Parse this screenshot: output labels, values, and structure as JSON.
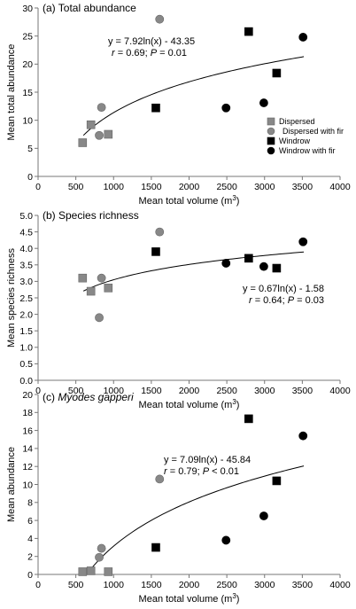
{
  "chart_data": [
    {
      "type": "scatter",
      "panel_label": "(a) Total abundance",
      "title_parts": [
        {
          "text": "(a) Total abundance",
          "italic": false
        }
      ],
      "xlabel": "Mean total volume (m",
      "xlabel_sup": "3",
      "xlabel_close": ")",
      "ylabel": "Mean total abundance",
      "xlim": [
        0,
        4000
      ],
      "xticks": [
        "0",
        "500",
        "1000",
        "1500",
        "2000",
        "2500",
        "3000",
        "3500",
        "4000"
      ],
      "ylim": [
        0,
        30
      ],
      "yticks": [
        "0",
        "5",
        "10",
        "15",
        "20",
        "25",
        "30"
      ],
      "grid": false,
      "equation": "y = 7.92ln(x) - 43.35",
      "stat_r": "r",
      "stat_mid": " = 0.69; ",
      "stat_p": "P",
      "stat_end": " = 0.01",
      "trend": {
        "a": 7.92,
        "b": -43.35,
        "x_from": 600,
        "x_to": 3520
      },
      "legend": {
        "position": "right-middle",
        "entries": [
          {
            "label": "Dispersed",
            "marker": "square",
            "color": "#888888"
          },
          {
            "label": "Dispersed with fir",
            "marker": "circle",
            "color": "#888888"
          },
          {
            "label": "Windrow",
            "marker": "square",
            "color": "#000000"
          },
          {
            "label": "Windrow with fir",
            "marker": "circle",
            "color": "#000000"
          }
        ]
      },
      "series": [
        {
          "name": "Dispersed",
          "marker": "square",
          "color": "#888888",
          "x": [
            590,
            700,
            930
          ],
          "y": [
            6,
            9.2,
            7.5
          ]
        },
        {
          "name": "Dispersed with fir",
          "marker": "circle",
          "color": "#888888",
          "x": [
            810,
            840,
            1610
          ],
          "y": [
            7.3,
            12.3,
            28
          ]
        },
        {
          "name": "Windrow",
          "marker": "square",
          "color": "#000000",
          "x": [
            1560,
            2790,
            3160
          ],
          "y": [
            12.2,
            25.8,
            18.4
          ]
        },
        {
          "name": "Windrow with fir",
          "marker": "circle",
          "color": "#000000",
          "x": [
            2490,
            2990,
            3510
          ],
          "y": [
            12.2,
            13.1,
            24.8
          ]
        }
      ]
    },
    {
      "type": "scatter",
      "panel_label": "(b) Species richness",
      "title_parts": [
        {
          "text": "(b) Species richness",
          "italic": false
        }
      ],
      "xlabel": "Mean total volume (m",
      "xlabel_sup": "3",
      "xlabel_close": ")",
      "ylabel": "Mean species richness",
      "xlim": [
        0,
        4000
      ],
      "xticks": [
        "0",
        "500",
        "1000",
        "1500",
        "2000",
        "2500",
        "3000",
        "3500",
        "4000"
      ],
      "ylim": [
        0,
        5
      ],
      "yticks": [
        "0.0",
        "0.5",
        "1.0",
        "1.5",
        "2.0",
        "2.5",
        "3.0",
        "3.5",
        "4.0",
        "4.5",
        "5.0"
      ],
      "grid": false,
      "equation": "y = 0.67ln(x) - 1.58",
      "stat_r": "r",
      "stat_mid": " = 0.64; ",
      "stat_p": "P",
      "stat_end": " = 0.03",
      "trend": {
        "a": 0.67,
        "b": -1.58,
        "x_from": 600,
        "x_to": 3520
      },
      "series": [
        {
          "name": "Dispersed",
          "marker": "square",
          "color": "#888888",
          "x": [
            590,
            700,
            930
          ],
          "y": [
            3.1,
            2.7,
            2.8
          ]
        },
        {
          "name": "Dispersed with fir",
          "marker": "circle",
          "color": "#888888",
          "x": [
            810,
            840,
            1610
          ],
          "y": [
            1.9,
            3.1,
            4.5
          ]
        },
        {
          "name": "Windrow",
          "marker": "square",
          "color": "#000000",
          "x": [
            1560,
            2790,
            3160
          ],
          "y": [
            3.9,
            3.7,
            3.4
          ]
        },
        {
          "name": "Windrow with fir",
          "marker": "circle",
          "color": "#000000",
          "x": [
            2490,
            2990,
            3510
          ],
          "y": [
            3.55,
            3.45,
            4.2
          ]
        }
      ]
    },
    {
      "type": "scatter",
      "panel_label": "(c) Myodes gapperi",
      "title_parts": [
        {
          "text": "(c) ",
          "italic": false
        },
        {
          "text": "Myodes gapperi",
          "italic": true
        }
      ],
      "xlabel": "Mean total volume (m",
      "xlabel_sup": "3",
      "xlabel_close": ")",
      "ylabel": "Mean abundance",
      "xlim": [
        0,
        4000
      ],
      "xticks": [
        "0",
        "500",
        "1000",
        "1500",
        "2000",
        "2500",
        "3000",
        "3500",
        "4000"
      ],
      "ylim": [
        0,
        20
      ],
      "yticks": [
        "0",
        "2",
        "4",
        "6",
        "8",
        "10",
        "12",
        "14",
        "16",
        "18",
        "20"
      ],
      "grid": false,
      "equation": "y = 7.09ln(x) - 45.84",
      "stat_r": "r",
      "stat_mid": " = 0.79; ",
      "stat_p": "P",
      "stat_end": " < 0.01",
      "trend": {
        "a": 7.09,
        "b": -45.84,
        "x_from": 640,
        "x_to": 3520
      },
      "series": [
        {
          "name": "Dispersed",
          "marker": "square",
          "color": "#888888",
          "x": [
            590,
            700,
            930
          ],
          "y": [
            0.3,
            0.4,
            0.3
          ]
        },
        {
          "name": "Dispersed with fir",
          "marker": "circle",
          "color": "#888888",
          "x": [
            810,
            840,
            1610
          ],
          "y": [
            1.9,
            2.9,
            10.6
          ]
        },
        {
          "name": "Windrow",
          "marker": "square",
          "color": "#000000",
          "x": [
            1560,
            2790,
            3160
          ],
          "y": [
            3,
            17.3,
            10.4
          ]
        },
        {
          "name": "Windrow with fir",
          "marker": "circle",
          "color": "#000000",
          "x": [
            2490,
            2990,
            3510
          ],
          "y": [
            3.8,
            6.5,
            15.4
          ]
        }
      ]
    }
  ]
}
